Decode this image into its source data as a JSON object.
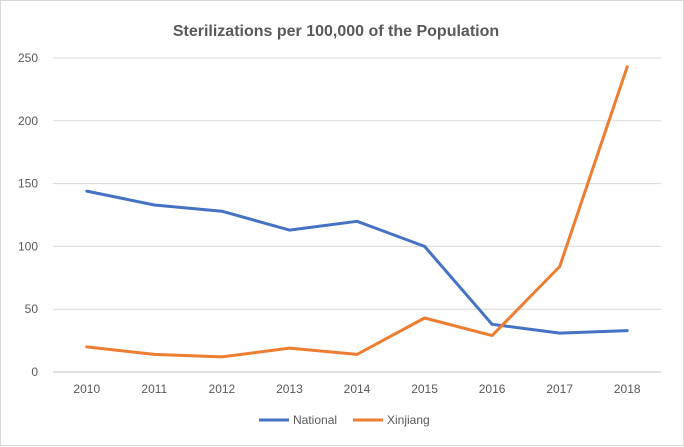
{
  "chart_data": {
    "type": "line",
    "title": "Sterilizations per 100,000 of the Population",
    "xlabel": "",
    "ylabel": "",
    "x": [
      "2010",
      "2011",
      "2012",
      "2013",
      "2014",
      "2015",
      "2016",
      "2017",
      "2018"
    ],
    "ylim": [
      0,
      250
    ],
    "yticks": [
      "0",
      "50",
      "100",
      "150",
      "200",
      "250"
    ],
    "grid": true,
    "legend": "bottom",
    "series": [
      {
        "name": "National",
        "color": "#4472C4",
        "values": [
          144,
          133,
          128,
          113,
          120,
          100,
          38,
          31,
          33
        ]
      },
      {
        "name": "Xinjiang",
        "color": "#ED7D31",
        "values": [
          20,
          14,
          12,
          19,
          14,
          43,
          29,
          84,
          243
        ]
      }
    ]
  }
}
